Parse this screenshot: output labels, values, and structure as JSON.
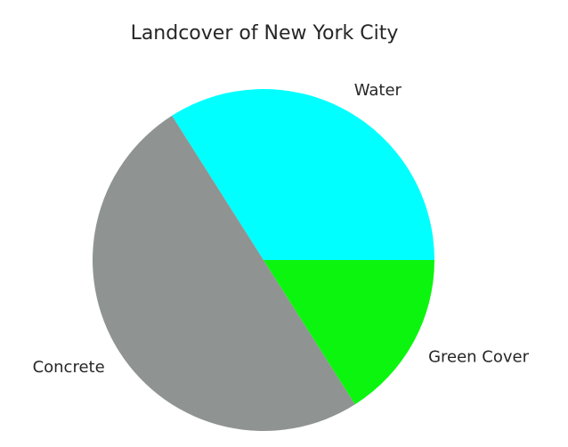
{
  "chart_data": {
    "type": "pie",
    "title": "Landcover of New York City",
    "categories": [
      "Water",
      "Concrete",
      "Green Cover"
    ],
    "values": [
      34,
      50,
      16
    ],
    "colors": [
      "#00ffff",
      "#8f9492",
      "#0cf50f"
    ],
    "start_angle_deg": 0,
    "direction": "counterclockwise",
    "legend": "none"
  }
}
